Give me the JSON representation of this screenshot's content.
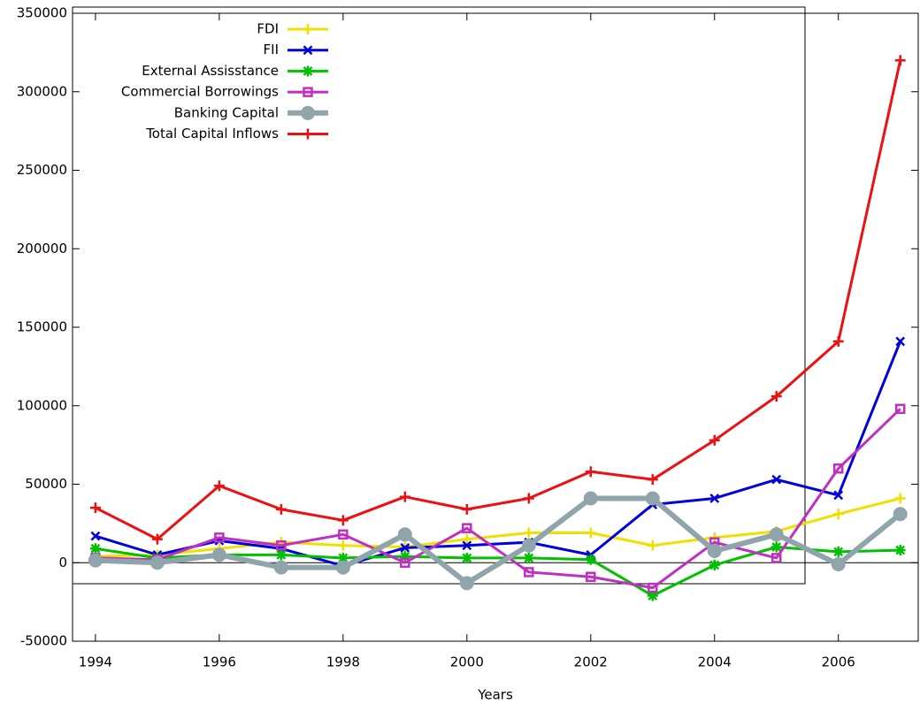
{
  "chart_data": {
    "type": "line",
    "xlabel": "Years",
    "x": [
      1994,
      1995,
      1996,
      1997,
      1998,
      1999,
      2000,
      2001,
      2002,
      2003,
      2004,
      2005,
      2006,
      2007
    ],
    "xlim": [
      1993.63,
      2007.29
    ],
    "xticks": [
      1994,
      1996,
      1998,
      2000,
      2002,
      2004,
      2006
    ],
    "ylim": [
      -50000,
      350000
    ],
    "yticks": [
      -50000,
      0,
      50000,
      100000,
      150000,
      200000,
      250000,
      300000,
      350000
    ],
    "zero_line": true,
    "series": [
      {
        "name": "FDI",
        "color": "#f0e000",
        "marker": "plus",
        "values": [
          4000,
          5000,
          9000,
          13000,
          11000,
          10000,
          15000,
          19000,
          19000,
          11000,
          16000,
          20000,
          31000,
          41000
        ]
      },
      {
        "name": "FII",
        "color": "#0000dd",
        "marker": "cross",
        "values": [
          17000,
          5000,
          14000,
          9000,
          -2000,
          9500,
          11000,
          13000,
          5000,
          37000,
          41000,
          53000,
          43000,
          141000
        ]
      },
      {
        "name": "External  Assisstance",
        "color": "#00c000",
        "marker": "star",
        "values": [
          9000,
          3000,
          5000,
          5000,
          3000,
          4000,
          3000,
          3000,
          2000,
          -21000,
          -1500,
          10000,
          7000,
          8000
        ]
      },
      {
        "name": "Commercial Borrowings",
        "color": "#c030c0",
        "marker": "square",
        "values": [
          3000,
          2000,
          16000,
          11000,
          18000,
          0,
          22000,
          -6000,
          -9000,
          -16000,
          13000,
          3000,
          60000,
          98000
        ]
      },
      {
        "name": "Banking Capital",
        "color": "#90a4ac",
        "marker": "circle",
        "values": [
          1500,
          0,
          5000,
          -3000,
          -3000,
          18000,
          -13000,
          11000,
          41000,
          41000,
          7500,
          18000,
          -1000,
          31000
        ]
      },
      {
        "name": "Total Capital Inflows",
        "color": "#ee1010",
        "marker": "plus",
        "values": [
          35000,
          15000,
          49000,
          34000,
          27000,
          42000,
          34000,
          41000,
          58000,
          53000,
          78000,
          106000,
          141000,
          320000
        ]
      }
    ]
  }
}
